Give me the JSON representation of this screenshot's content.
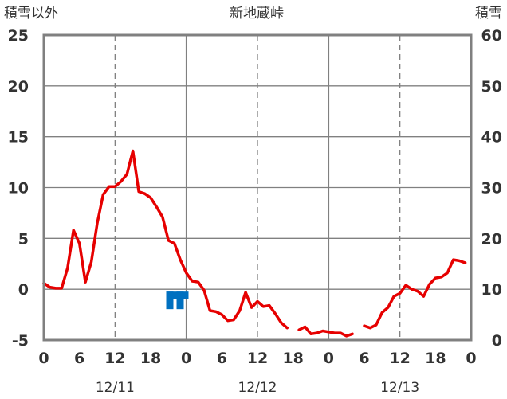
{
  "chart_data": {
    "type": "line",
    "title": "新地蔵峠",
    "ylabel_left": "積雪以外",
    "ylabel_right": "積雪",
    "ylim_left": [
      -5,
      25
    ],
    "ylim_right": [
      0,
      60
    ],
    "xlim_hours": [
      0,
      72
    ],
    "yticks_left": [
      "25",
      "20",
      "15",
      "10",
      "5",
      "0",
      "-5"
    ],
    "yticks_right": [
      "60",
      "50",
      "40",
      "30",
      "20",
      "10",
      "0"
    ],
    "xticks": [
      "0",
      "6",
      "12",
      "18",
      "0",
      "6",
      "12",
      "18",
      "0",
      "6",
      "12",
      "18",
      "0"
    ],
    "dates": [
      "12/11",
      "12/12",
      "12/13"
    ],
    "colors": {
      "temperature": "#e60000",
      "snow_depth": "#7030a0",
      "marker": "#0070c0",
      "frame": "#808080",
      "grid": "#808080"
    },
    "marker_icon": "snow-bar-icon",
    "marker_hour": 22.5,
    "series": [
      {
        "key": "temperature",
        "axis": "left",
        "segments": [
          [
            [
              0,
              0.6
            ],
            [
              1,
              0.2
            ],
            [
              2,
              0.1
            ],
            [
              3,
              0.1
            ],
            [
              4,
              2.1
            ],
            [
              5,
              5.8
            ],
            [
              6,
              4.5
            ],
            [
              7,
              0.7
            ],
            [
              8,
              2.7
            ],
            [
              9,
              6.5
            ],
            [
              10,
              9.3
            ],
            [
              11,
              10.1
            ],
            [
              12,
              10.1
            ],
            [
              13,
              10.6
            ],
            [
              14,
              11.3
            ],
            [
              15,
              13.6
            ],
            [
              16,
              9.6
            ],
            [
              17,
              9.4
            ],
            [
              18,
              9.0
            ],
            [
              19,
              8.1
            ],
            [
              20,
              7.1
            ],
            [
              21,
              4.8
            ],
            [
              22,
              4.5
            ],
            [
              23,
              2.9
            ],
            [
              24,
              1.6
            ],
            [
              25,
              0.8
            ],
            [
              26,
              0.7
            ],
            [
              27,
              -0.1
            ],
            [
              28,
              -2.1
            ],
            [
              29,
              -2.2
            ],
            [
              30,
              -2.5
            ],
            [
              31,
              -3.1
            ],
            [
              32,
              -3.0
            ],
            [
              33,
              -2.1
            ],
            [
              34,
              -0.3
            ],
            [
              35,
              -1.8
            ],
            [
              36,
              -1.2
            ],
            [
              37,
              -1.7
            ],
            [
              38,
              -1.6
            ],
            [
              39,
              -2.4
            ],
            [
              40,
              -3.3
            ],
            [
              41,
              -3.8
            ]
          ],
          [
            [
              43,
              -4.0
            ],
            [
              44,
              -3.7
            ],
            [
              45,
              -4.4
            ],
            [
              46,
              -4.3
            ],
            [
              47,
              -4.1
            ],
            [
              48,
              -4.2
            ],
            [
              49,
              -4.3
            ],
            [
              50,
              -4.3
            ],
            [
              51,
              -4.6
            ],
            [
              52,
              -4.4
            ]
          ],
          [
            [
              54,
              -3.6
            ],
            [
              55,
              -3.8
            ],
            [
              56,
              -3.5
            ],
            [
              57,
              -2.3
            ],
            [
              58,
              -1.8
            ],
            [
              59,
              -0.7
            ],
            [
              60,
              -0.4
            ],
            [
              61,
              0.4
            ],
            [
              62,
              0.0
            ],
            [
              63,
              -0.2
            ],
            [
              64,
              -0.7
            ],
            [
              65,
              0.5
            ],
            [
              66,
              1.1
            ],
            [
              67,
              1.2
            ],
            [
              68,
              1.6
            ],
            [
              69,
              2.9
            ],
            [
              70,
              2.8
            ],
            [
              71,
              2.6
            ]
          ]
        ]
      },
      {
        "key": "snow_depth",
        "axis": "right",
        "segments": [
          [
            [
              0,
              0
            ],
            [
              72,
              0
            ]
          ]
        ]
      }
    ]
  }
}
